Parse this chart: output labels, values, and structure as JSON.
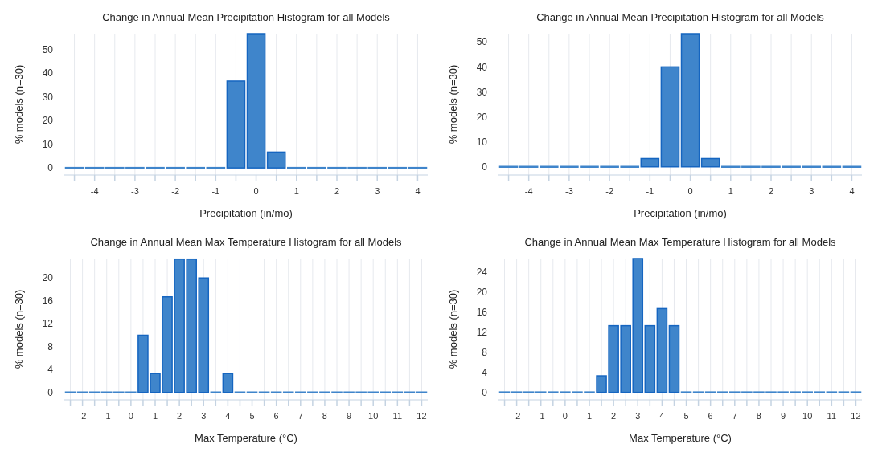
{
  "chart_data": [
    {
      "type": "histogram",
      "title": "Change in Annual Mean Precipitation Histogram for all Models",
      "xlabel": "Precipitation (in/mo)",
      "ylabel": "% models (n=30)",
      "color": "#3f85cb",
      "grid": "x",
      "bins": [
        -4.75,
        -4.25,
        -3.75,
        -3.25,
        -2.75,
        -2.25,
        -1.75,
        -1.25,
        -0.75,
        -0.25,
        0.25,
        0.75,
        1.25,
        1.75,
        2.25,
        2.75,
        3.25,
        3.75,
        4.25
      ],
      "values": [
        0,
        0,
        0,
        0,
        0,
        0,
        0,
        0,
        36.7,
        56.7,
        6.7,
        0,
        0,
        0,
        0,
        0,
        0,
        0
      ],
      "xlim": [
        -4.75,
        4.25
      ],
      "ylim": [
        -3,
        56.7
      ],
      "xticks": [
        {
          "value": -4.5,
          "label": null
        },
        -4,
        {
          "value": -3.5,
          "label": null
        },
        -3,
        {
          "value": -2.5,
          "label": null
        },
        -2,
        {
          "value": -1.5,
          "label": null
        },
        -1,
        {
          "value": -0.5,
          "label": null
        },
        0,
        {
          "value": 0.5,
          "label": null
        },
        1,
        {
          "value": 1.5,
          "label": null
        },
        2,
        {
          "value": 2.5,
          "label": null
        },
        3,
        {
          "value": 3.5,
          "label": null
        },
        4
      ],
      "yticks": [
        0,
        10,
        20,
        30,
        40,
        50
      ]
    },
    {
      "type": "histogram",
      "title": "Change in Annual Mean Precipitation Histogram for all Models",
      "xlabel": "Precipitation (in/mo)",
      "ylabel": "% models (n=30)",
      "color": "#3f85cb",
      "grid": "x",
      "bins": [
        -4.75,
        -4.25,
        -3.75,
        -3.25,
        -2.75,
        -2.25,
        -1.75,
        -1.25,
        -0.75,
        -0.25,
        0.25,
        0.75,
        1.25,
        1.75,
        2.25,
        2.75,
        3.25,
        3.75,
        4.25
      ],
      "values": [
        0,
        0,
        0,
        0,
        0,
        0,
        0,
        3.3,
        40,
        53.3,
        3.3,
        0,
        0,
        0,
        0,
        0,
        0,
        0
      ],
      "xlim": [
        -4.75,
        4.25
      ],
      "ylim": [
        -3.3,
        53.3
      ],
      "xticks": [
        {
          "value": -4.5,
          "label": null
        },
        -4,
        {
          "value": -3.5,
          "label": null
        },
        -3,
        {
          "value": -2.5,
          "label": null
        },
        -2,
        {
          "value": -1.5,
          "label": null
        },
        -1,
        {
          "value": -0.5,
          "label": null
        },
        0,
        {
          "value": 0.5,
          "label": null
        },
        1,
        {
          "value": 1.5,
          "label": null
        },
        2,
        {
          "value": 2.5,
          "label": null
        },
        3,
        {
          "value": 3.5,
          "label": null
        },
        4
      ],
      "yticks": [
        0,
        10,
        20,
        30,
        40,
        50
      ]
    },
    {
      "type": "histogram",
      "title": "Change in Annual Mean Max Temperature Histogram for all Models",
      "xlabel": "Max Temperature (°C)",
      "ylabel": "% models (n=30)",
      "color": "#3f85cb",
      "grid": "x",
      "bins": [
        -2.75,
        -2.25,
        -1.75,
        -1.25,
        -0.75,
        -0.25,
        0.25,
        0.75,
        1.25,
        1.75,
        2.25,
        2.75,
        3.25,
        3.75,
        4.25,
        4.75,
        5.25,
        5.75,
        6.25,
        6.75,
        7.25,
        7.75,
        8.25,
        8.75,
        9.25,
        9.75,
        10.25,
        10.75,
        11.25,
        11.75,
        12.25
      ],
      "values": [
        0,
        0,
        0,
        0,
        0,
        0,
        10,
        3.3,
        16.7,
        23.3,
        23.3,
        20,
        0,
        3.3,
        0,
        0,
        0,
        0,
        0,
        0,
        0,
        0,
        0,
        0,
        0,
        0,
        0,
        0,
        0,
        0
      ],
      "xlim": [
        -2.75,
        12.25
      ],
      "ylim": [
        -1.3,
        23.4
      ],
      "xticks": [
        {
          "value": -2.5,
          "label": null
        },
        -2,
        {
          "value": -1.5,
          "label": null
        },
        -1,
        {
          "value": -0.5,
          "label": null
        },
        0,
        {
          "value": 0.5,
          "label": null
        },
        1,
        {
          "value": 1.5,
          "label": null
        },
        2,
        {
          "value": 2.5,
          "label": null
        },
        3,
        {
          "value": 3.5,
          "label": null
        },
        4,
        {
          "value": 4.5,
          "label": null
        },
        5,
        {
          "value": 5.5,
          "label": null
        },
        6,
        {
          "value": 6.5,
          "label": null
        },
        7,
        {
          "value": 7.5,
          "label": null
        },
        8,
        {
          "value": 8.5,
          "label": null
        },
        9,
        {
          "value": 9.5,
          "label": null
        },
        10,
        {
          "value": 10.5,
          "label": null
        },
        11,
        {
          "value": 11.5,
          "label": null
        },
        12
      ],
      "yticks": [
        0,
        4,
        8,
        12,
        16,
        20
      ]
    },
    {
      "type": "histogram",
      "title": "Change in Annual Mean Max Temperature Histogram for all Models",
      "xlabel": "Max Temperature (°C)",
      "ylabel": "% models (n=30)",
      "color": "#3f85cb",
      "grid": "x",
      "bins": [
        -2.75,
        -2.25,
        -1.75,
        -1.25,
        -0.75,
        -0.25,
        0.25,
        0.75,
        1.25,
        1.75,
        2.25,
        2.75,
        3.25,
        3.75,
        4.25,
        4.75,
        5.25,
        5.75,
        6.25,
        6.75,
        7.25,
        7.75,
        8.25,
        8.75,
        9.25,
        9.75,
        10.25,
        10.75,
        11.25,
        11.75,
        12.25
      ],
      "values": [
        0,
        0,
        0,
        0,
        0,
        0,
        0,
        0,
        3.3,
        13.3,
        13.3,
        26.7,
        13.3,
        16.7,
        13.3,
        0,
        0,
        0,
        0,
        0,
        0,
        0,
        0,
        0,
        0,
        0,
        0,
        0,
        0,
        0
      ],
      "xlim": [
        -2.75,
        12.25
      ],
      "ylim": [
        -1.5,
        26.7
      ],
      "xticks": [
        {
          "value": -2.5,
          "label": null
        },
        -2,
        {
          "value": -1.5,
          "label": null
        },
        -1,
        {
          "value": -0.5,
          "label": null
        },
        0,
        {
          "value": 0.5,
          "label": null
        },
        1,
        {
          "value": 1.5,
          "label": null
        },
        2,
        {
          "value": 2.5,
          "label": null
        },
        3,
        {
          "value": 3.5,
          "label": null
        },
        4,
        {
          "value": 4.5,
          "label": null
        },
        5,
        {
          "value": 5.5,
          "label": null
        },
        6,
        {
          "value": 6.5,
          "label": null
        },
        7,
        {
          "value": 7.5,
          "label": null
        },
        8,
        {
          "value": 8.5,
          "label": null
        },
        9,
        {
          "value": 9.5,
          "label": null
        },
        10,
        {
          "value": 10.5,
          "label": null
        },
        11,
        {
          "value": 11.5,
          "label": null
        },
        12
      ],
      "yticks": [
        0,
        4,
        8,
        12,
        16,
        20,
        24
      ]
    }
  ]
}
